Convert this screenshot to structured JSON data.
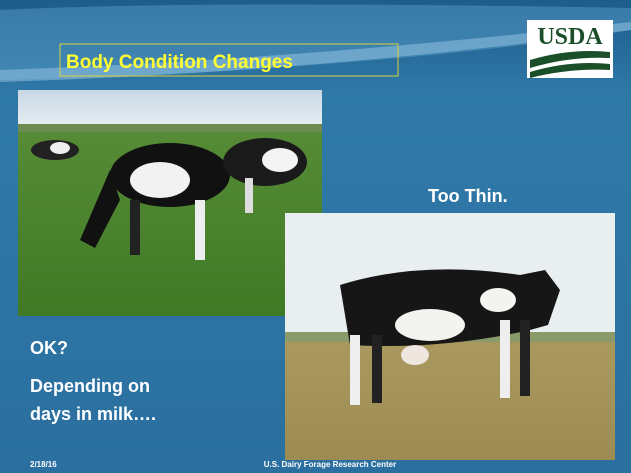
{
  "header": {
    "title": "Body Condition Changes",
    "logo": "USDA"
  },
  "labels": {
    "top_right": "Too Thin.",
    "question": "OK?",
    "note_line1": "Depending on",
    "note_line2": "days in milk…."
  },
  "footer": {
    "date": "2/18/16",
    "organization": "U.S. Dairy Forage Research Center"
  }
}
